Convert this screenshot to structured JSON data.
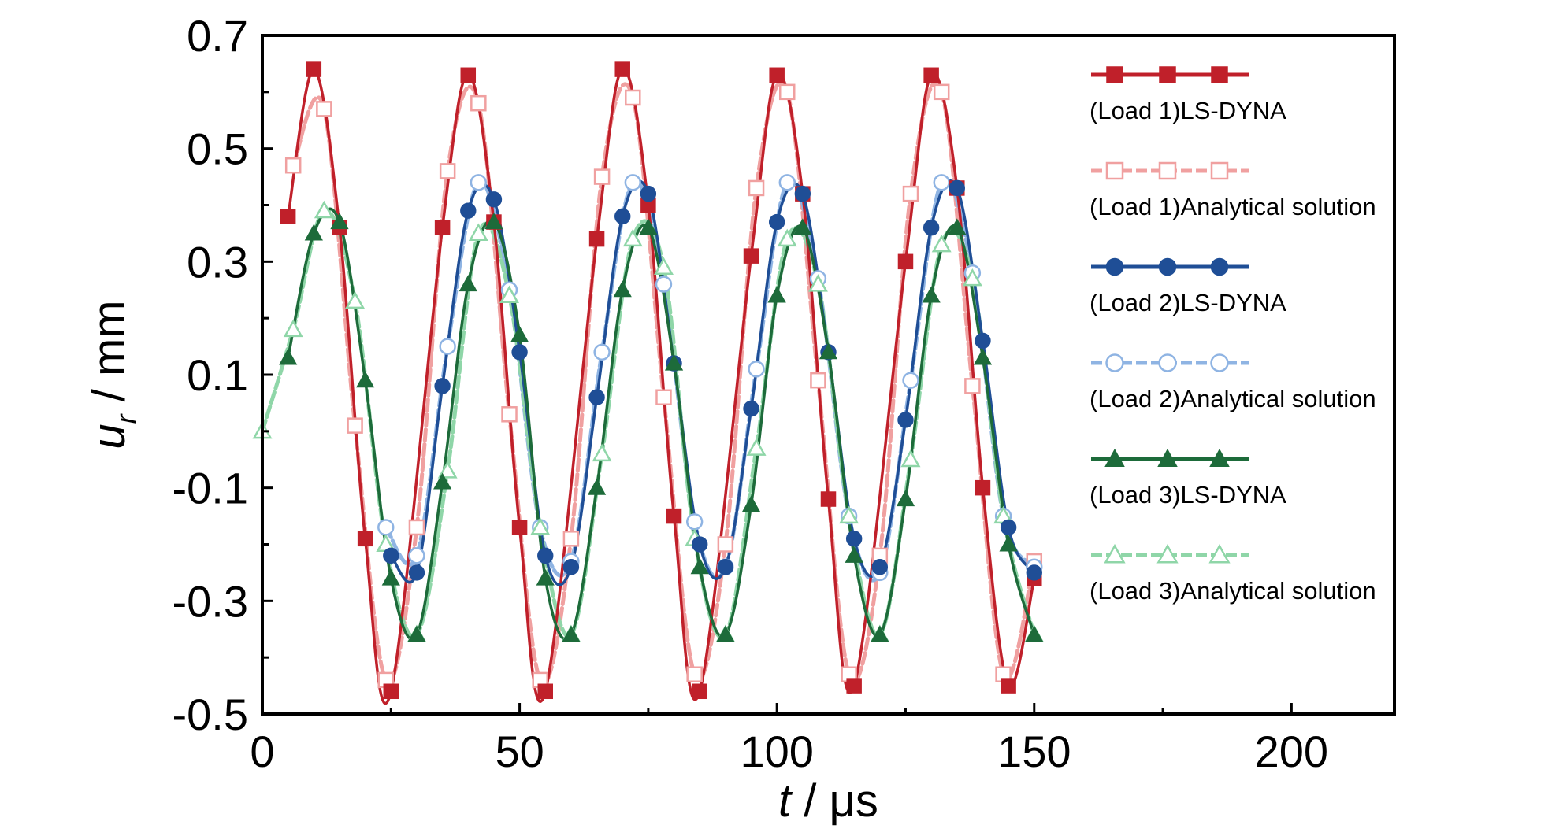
{
  "chart_data": {
    "type": "line",
    "title": "",
    "xlabel": {
      "symbol": "t",
      "unit": " / μs"
    },
    "ylabel": {
      "symbol": "u",
      "subscript": "r",
      "unit": " / mm"
    },
    "xlim": [
      0,
      220
    ],
    "ylim": [
      -0.5,
      0.7
    ],
    "xticks": [
      "0",
      "50",
      "100",
      "150",
      "200"
    ],
    "yticks": [
      "-0.5",
      "-0.3",
      "-0.1",
      "0.1",
      "0.3",
      "0.5",
      "0.7"
    ],
    "grid": false,
    "legend_position": "right",
    "series": [
      {
        "name": "(Load 1)LS-DYNA",
        "color": "#c0202a",
        "marker": "square-filled",
        "line": "solid",
        "marker_points": [
          [
            5,
            0.38
          ],
          [
            10,
            0.64
          ],
          [
            15,
            0.36
          ],
          [
            20,
            -0.19
          ],
          [
            25,
            -0.46
          ],
          [
            35,
            0.36
          ],
          [
            40,
            0.63
          ],
          [
            45,
            0.37
          ],
          [
            50,
            -0.17
          ],
          [
            55,
            -0.46
          ],
          [
            65,
            0.34
          ],
          [
            70,
            0.64
          ],
          [
            75,
            0.4
          ],
          [
            80,
            -0.15
          ],
          [
            85,
            -0.46
          ],
          [
            95,
            0.31
          ],
          [
            100,
            0.63
          ],
          [
            105,
            0.42
          ],
          [
            110,
            -0.12
          ],
          [
            115,
            -0.45
          ],
          [
            125,
            0.3
          ],
          [
            130,
            0.63
          ],
          [
            135,
            0.43
          ],
          [
            140,
            -0.1
          ],
          [
            145,
            -0.45
          ],
          [
            150,
            -0.26
          ]
        ]
      },
      {
        "name": "(Load 1)Analytical solution",
        "color": "#f0a0a0",
        "marker": "square-open",
        "line": "dashed",
        "marker_points": [
          [
            6,
            0.47
          ],
          [
            12,
            0.57
          ],
          [
            18,
            0.01
          ],
          [
            24,
            -0.44
          ],
          [
            30,
            -0.17
          ],
          [
            36,
            0.46
          ],
          [
            42,
            0.58
          ],
          [
            48,
            0.03
          ],
          [
            54,
            -0.44
          ],
          [
            60,
            -0.19
          ],
          [
            66,
            0.45
          ],
          [
            72,
            0.59
          ],
          [
            78,
            0.06
          ],
          [
            84,
            -0.43
          ],
          [
            90,
            -0.2
          ],
          [
            96,
            0.43
          ],
          [
            102,
            0.6
          ],
          [
            108,
            0.09
          ],
          [
            114,
            -0.43
          ],
          [
            120,
            -0.22
          ],
          [
            126,
            0.42
          ],
          [
            132,
            0.6
          ],
          [
            138,
            0.08
          ],
          [
            144,
            -0.43
          ],
          [
            150,
            -0.23
          ]
        ]
      },
      {
        "name": "(Load 2)LS-DYNA",
        "color": "#1f4e96",
        "marker": "circle-filled",
        "line": "solid",
        "marker_points": [
          [
            25,
            -0.22
          ],
          [
            30,
            -0.25
          ],
          [
            35,
            0.08
          ],
          [
            40,
            0.39
          ],
          [
            45,
            0.41
          ],
          [
            50,
            0.14
          ],
          [
            55,
            -0.22
          ],
          [
            60,
            -0.24
          ],
          [
            65,
            0.06
          ],
          [
            70,
            0.38
          ],
          [
            75,
            0.42
          ],
          [
            80,
            0.12
          ],
          [
            85,
            -0.2
          ],
          [
            90,
            -0.24
          ],
          [
            95,
            0.04
          ],
          [
            100,
            0.37
          ],
          [
            105,
            0.42
          ],
          [
            110,
            0.14
          ],
          [
            115,
            -0.19
          ],
          [
            120,
            -0.24
          ],
          [
            125,
            0.02
          ],
          [
            130,
            0.36
          ],
          [
            135,
            0.43
          ],
          [
            140,
            0.16
          ],
          [
            145,
            -0.17
          ],
          [
            150,
            -0.25
          ]
        ]
      },
      {
        "name": "(Load 2)Analytical solution",
        "color": "#8fb4e3",
        "marker": "circle-open",
        "line": "dashed",
        "marker_points": [
          [
            24,
            -0.17
          ],
          [
            30,
            -0.22
          ],
          [
            36,
            0.15
          ],
          [
            42,
            0.44
          ],
          [
            48,
            0.25
          ],
          [
            54,
            -0.17
          ],
          [
            60,
            -0.23
          ],
          [
            66,
            0.14
          ],
          [
            72,
            0.44
          ],
          [
            78,
            0.26
          ],
          [
            84,
            -0.16
          ],
          [
            90,
            -0.24
          ],
          [
            96,
            0.11
          ],
          [
            102,
            0.44
          ],
          [
            108,
            0.27
          ],
          [
            114,
            -0.15
          ],
          [
            120,
            -0.25
          ],
          [
            126,
            0.09
          ],
          [
            132,
            0.44
          ],
          [
            138,
            0.28
          ],
          [
            144,
            -0.15
          ],
          [
            150,
            -0.24
          ]
        ]
      },
      {
        "name": "(Load 3)LS-DYNA",
        "color": "#1d6b3a",
        "marker": "triangle-filled",
        "line": "solid",
        "marker_points": [
          [
            5,
            0.13
          ],
          [
            10,
            0.35
          ],
          [
            15,
            0.37
          ],
          [
            20,
            0.09
          ],
          [
            25,
            -0.26
          ],
          [
            30,
            -0.36
          ],
          [
            35,
            -0.09
          ],
          [
            40,
            0.26
          ],
          [
            45,
            0.37
          ],
          [
            50,
            0.17
          ],
          [
            55,
            -0.26
          ],
          [
            60,
            -0.36
          ],
          [
            65,
            -0.1
          ],
          [
            70,
            0.25
          ],
          [
            75,
            0.36
          ],
          [
            80,
            0.12
          ],
          [
            85,
            -0.24
          ],
          [
            90,
            -0.36
          ],
          [
            95,
            -0.13
          ],
          [
            100,
            0.24
          ],
          [
            105,
            0.36
          ],
          [
            110,
            0.14
          ],
          [
            115,
            -0.22
          ],
          [
            120,
            -0.36
          ],
          [
            125,
            -0.12
          ],
          [
            130,
            0.24
          ],
          [
            135,
            0.36
          ],
          [
            140,
            0.13
          ],
          [
            145,
            -0.2
          ],
          [
            150,
            -0.36
          ]
        ]
      },
      {
        "name": "(Load 3)Analytical solution",
        "color": "#8fd6a8",
        "marker": "triangle-open",
        "line": "dashed",
        "marker_points": [
          [
            0,
            0.0
          ],
          [
            6,
            0.18
          ],
          [
            12,
            0.39
          ],
          [
            18,
            0.23
          ],
          [
            24,
            -0.2
          ],
          [
            30,
            -0.36
          ],
          [
            36,
            -0.07
          ],
          [
            42,
            0.35
          ],
          [
            48,
            0.24
          ],
          [
            54,
            -0.17
          ],
          [
            60,
            -0.36
          ],
          [
            66,
            -0.04
          ],
          [
            72,
            0.34
          ],
          [
            78,
            0.29
          ],
          [
            84,
            -0.19
          ],
          [
            90,
            -0.36
          ],
          [
            96,
            -0.03
          ],
          [
            102,
            0.34
          ],
          [
            108,
            0.26
          ],
          [
            114,
            -0.15
          ],
          [
            120,
            -0.36
          ],
          [
            126,
            -0.05
          ],
          [
            132,
            0.33
          ],
          [
            138,
            0.27
          ],
          [
            144,
            -0.15
          ],
          [
            150,
            -0.36
          ]
        ]
      }
    ]
  }
}
